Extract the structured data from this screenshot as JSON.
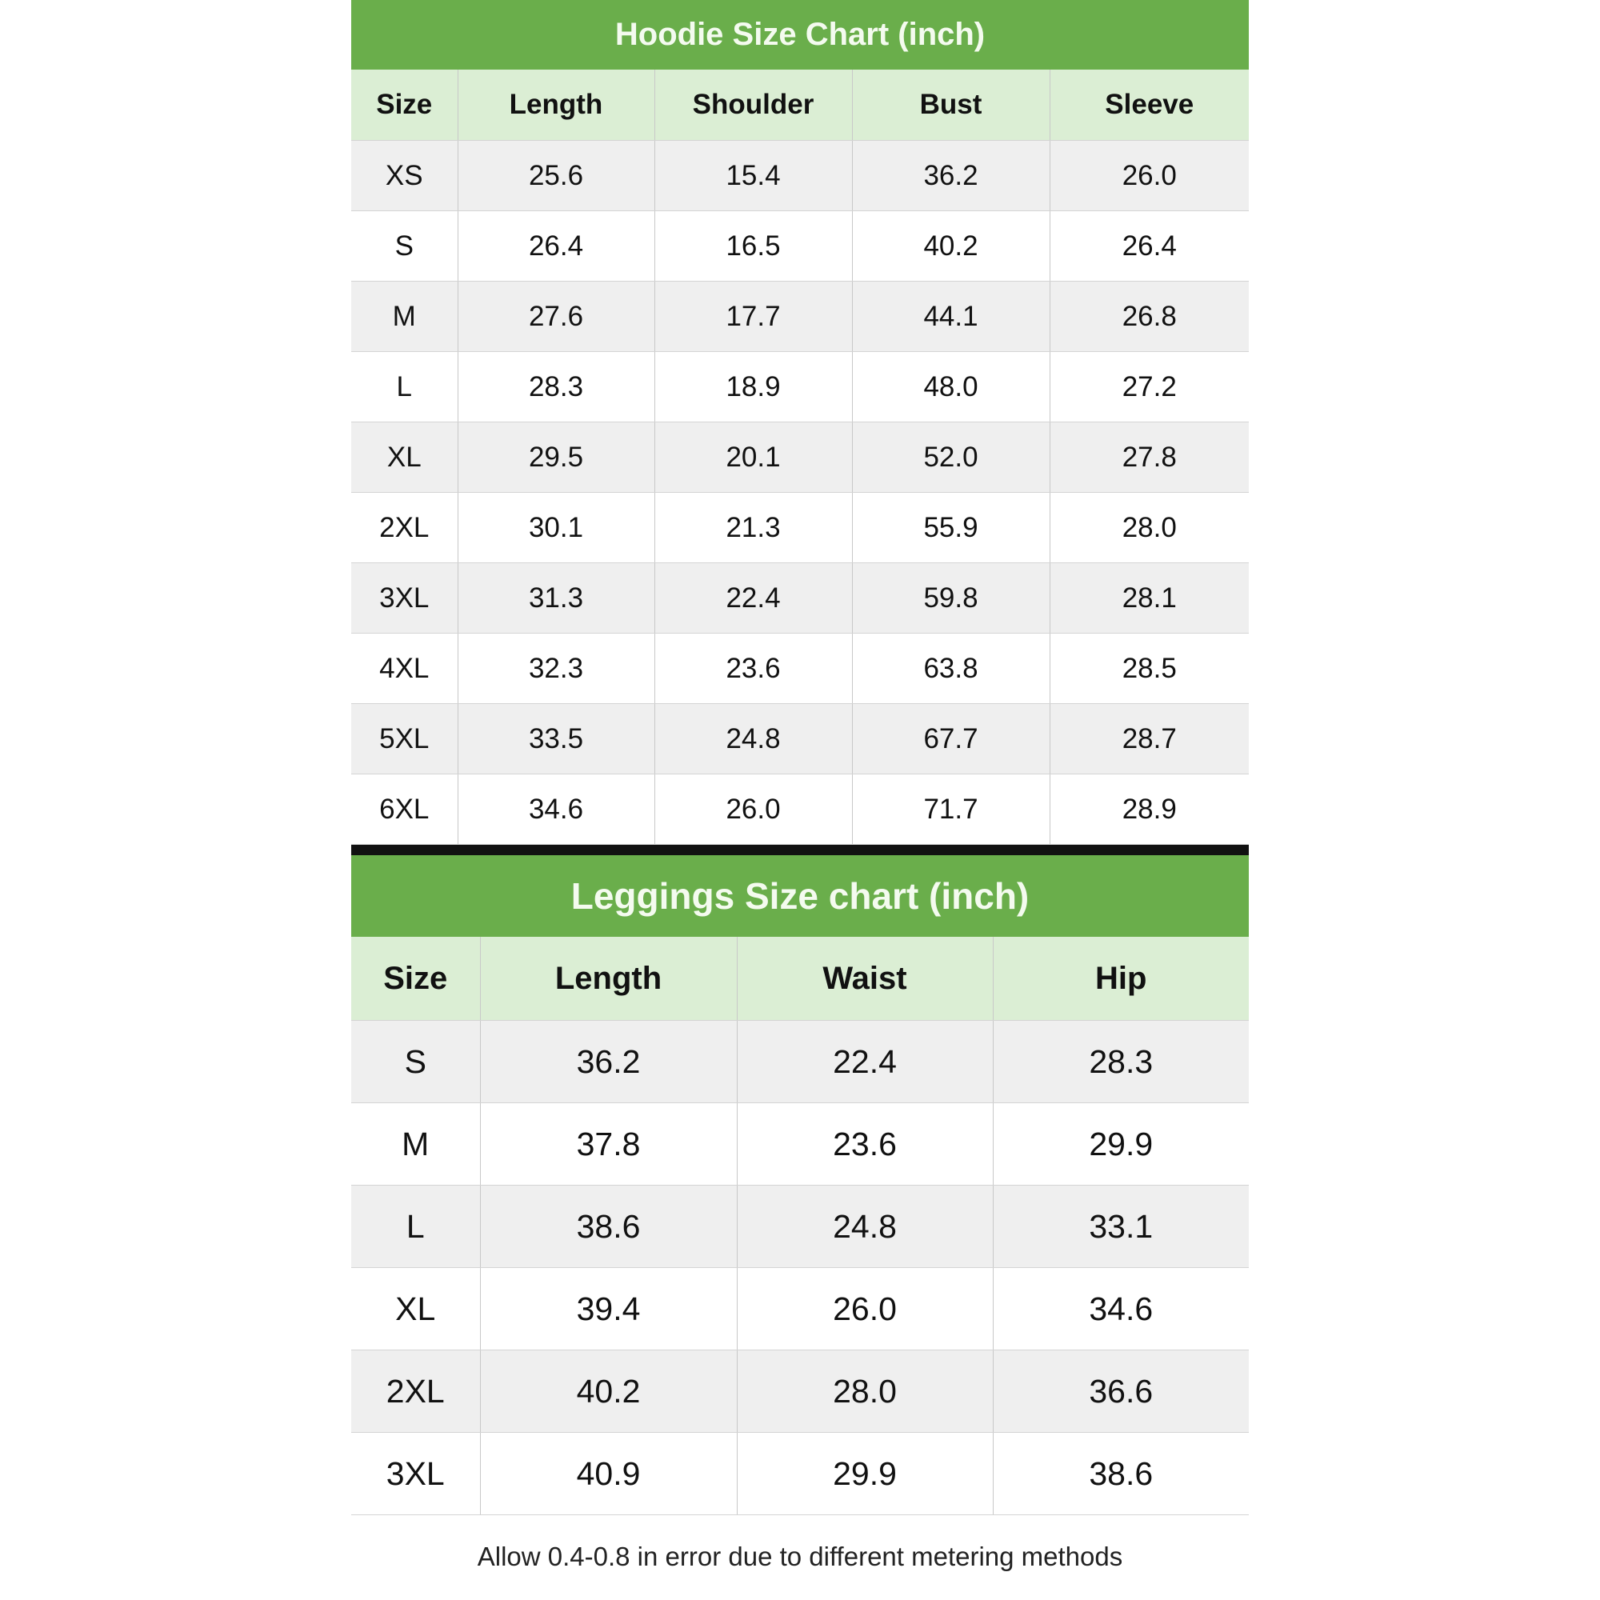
{
  "colors": {
    "title_bg": "#6aae4b",
    "header_bg": "#dbeed4",
    "row_alt": "#efefef",
    "divider": "#111111"
  },
  "hoodie": {
    "title": "Hoodie Size Chart (inch)",
    "columns": [
      "Size",
      "Length",
      "Shoulder",
      "Bust",
      "Sleeve"
    ],
    "rows": [
      [
        "XS",
        "25.6",
        "15.4",
        "36.2",
        "26.0"
      ],
      [
        "S",
        "26.4",
        "16.5",
        "40.2",
        "26.4"
      ],
      [
        "M",
        "27.6",
        "17.7",
        "44.1",
        "26.8"
      ],
      [
        "L",
        "28.3",
        "18.9",
        "48.0",
        "27.2"
      ],
      [
        "XL",
        "29.5",
        "20.1",
        "52.0",
        "27.8"
      ],
      [
        "2XL",
        "30.1",
        "21.3",
        "55.9",
        "28.0"
      ],
      [
        "3XL",
        "31.3",
        "22.4",
        "59.8",
        "28.1"
      ],
      [
        "4XL",
        "32.3",
        "23.6",
        "63.8",
        "28.5"
      ],
      [
        "5XL",
        "33.5",
        "24.8",
        "67.7",
        "28.7"
      ],
      [
        "6XL",
        "34.6",
        "26.0",
        "71.7",
        "28.9"
      ]
    ]
  },
  "leggings": {
    "title": "Leggings Size chart (inch)",
    "columns": [
      "Size",
      "Length",
      "Waist",
      "Hip"
    ],
    "rows": [
      [
        "S",
        "36.2",
        "22.4",
        "28.3"
      ],
      [
        "M",
        "37.8",
        "23.6",
        "29.9"
      ],
      [
        "L",
        "38.6",
        "24.8",
        "33.1"
      ],
      [
        "XL",
        "39.4",
        "26.0",
        "34.6"
      ],
      [
        "2XL",
        "40.2",
        "28.0",
        "36.6"
      ],
      [
        "3XL",
        "40.9",
        "29.9",
        "38.6"
      ]
    ]
  },
  "footer": {
    "note": "Allow 0.4-0.8 in error due to different metering methods"
  }
}
